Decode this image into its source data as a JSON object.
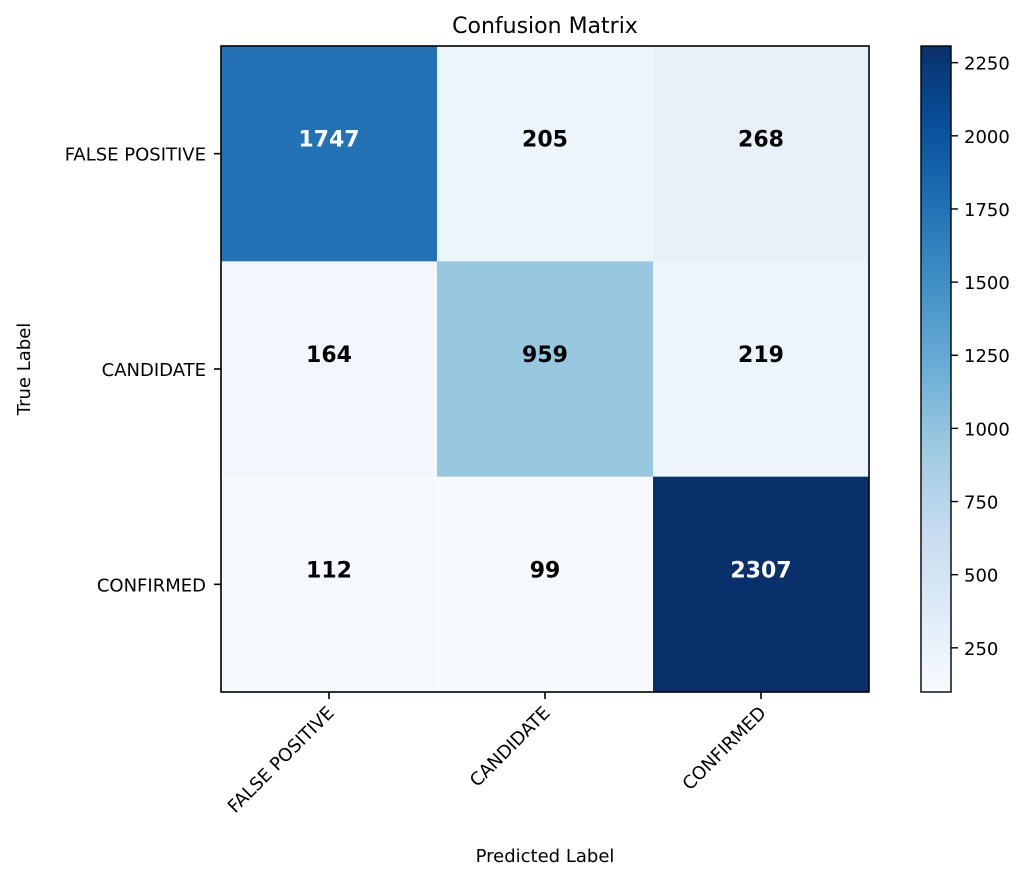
{
  "chart_data": {
    "type": "heatmap",
    "title": "Confusion Matrix",
    "xlabel": "Predicted Label",
    "ylabel": "True Label",
    "x_categories": [
      "FALSE POSITIVE",
      "CANDIDATE",
      "CONFIRMED"
    ],
    "y_categories": [
      "FALSE POSITIVE",
      "CANDIDATE",
      "CONFIRMED"
    ],
    "matrix": [
      [
        1747,
        205,
        268
      ],
      [
        164,
        959,
        219
      ],
      [
        112,
        99,
        2307
      ]
    ],
    "colormap": "Blues",
    "color_min": 99,
    "color_max": 2307,
    "colorbar_ticks": [
      250,
      500,
      750,
      1000,
      1250,
      1500,
      1750,
      2000,
      2250
    ],
    "colorbar_tick_labels": [
      "250",
      "500",
      "750",
      "1000",
      "1250",
      "1500",
      "1750",
      "2000",
      "2250"
    ],
    "text_color_light": "#ffffff",
    "text_color_dark": "#000000",
    "grid": false
  }
}
